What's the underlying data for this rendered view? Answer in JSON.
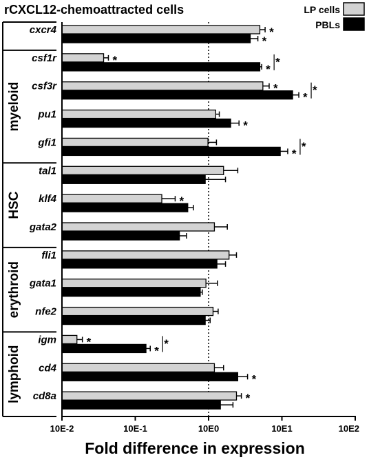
{
  "chart_data": {
    "type": "bar",
    "orientation": "horizontal",
    "title": "rCXCL12-chemoattracted cells",
    "xlabel": "Fold difference in expression",
    "xscale": "log",
    "xlim": [
      0.01,
      100
    ],
    "xticks": [
      "10E-2",
      "10E-1",
      "10E0",
      "10E1",
      "10E2"
    ],
    "reference_line": 1,
    "legend": {
      "position": "top-right",
      "entries": [
        "LP cells",
        "PBLs"
      ]
    },
    "colors": {
      "LP cells": "#d3d3d3",
      "PBLs": "#000000"
    },
    "groups": [
      {
        "name": "",
        "genes": [
          "cxcr4"
        ]
      },
      {
        "name": "myeloid",
        "genes": [
          "csf1r",
          "csf3r",
          "pu1",
          "gfi1"
        ]
      },
      {
        "name": "HSC",
        "genes": [
          "tal1",
          "klf4",
          "gata2"
        ]
      },
      {
        "name": "erythroid",
        "genes": [
          "fli1",
          "gata1",
          "nfe2"
        ]
      },
      {
        "name": "lymphoid",
        "genes": [
          "igm",
          "cd4",
          "cd8a"
        ]
      }
    ],
    "categories": [
      "cxcr4",
      "csf1r",
      "csf3r",
      "pu1",
      "gfi1",
      "tal1",
      "klf4",
      "gata2",
      "fli1",
      "gata1",
      "nfe2",
      "igm",
      "cd4",
      "cd8a"
    ],
    "series": [
      {
        "name": "LP cells",
        "values": [
          5.0,
          0.037,
          5.5,
          1.25,
          0.98,
          1.6,
          0.23,
          1.2,
          1.9,
          0.92,
          1.15,
          0.016,
          1.2,
          2.4
        ],
        "errors": [
          0.9,
          0.006,
          1.2,
          0.15,
          0.3,
          0.9,
          0.12,
          0.6,
          0.5,
          0.4,
          0.2,
          0.003,
          0.4,
          0.4
        ],
        "significant": [
          true,
          true,
          true,
          false,
          false,
          false,
          true,
          false,
          false,
          false,
          false,
          true,
          false,
          true
        ]
      },
      {
        "name": "PBLs",
        "values": [
          3.7,
          5.0,
          14.0,
          2.0,
          9.5,
          0.9,
          0.52,
          0.4,
          1.3,
          0.77,
          0.9,
          0.14,
          2.5,
          1.45
        ],
        "errors": [
          1.0,
          0.3,
          3.0,
          0.6,
          2.5,
          0.8,
          0.1,
          0.1,
          0.4,
          0.05,
          0.15,
          0.02,
          0.9,
          0.7
        ],
        "significant": [
          true,
          true,
          true,
          true,
          true,
          false,
          false,
          false,
          false,
          false,
          false,
          true,
          true,
          false
        ],
        "between_group_significant": [
          false,
          true,
          true,
          false,
          true,
          false,
          false,
          false,
          false,
          false,
          false,
          true,
          false,
          false
        ]
      }
    ],
    "significance_marker": "*"
  }
}
